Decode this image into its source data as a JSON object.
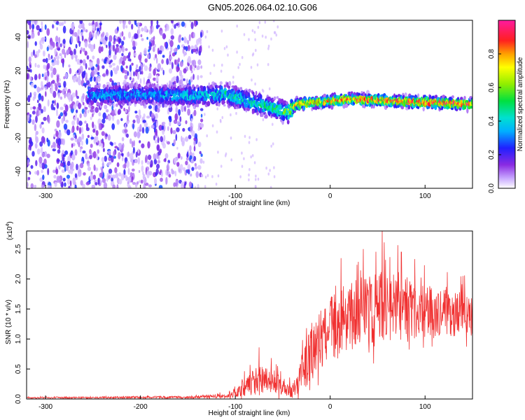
{
  "title": "GN05.2026.064.02.10.G06",
  "chart_data": [
    {
      "type": "heatmap",
      "name": "spectrogram",
      "xlabel": "Height of straight line (km)",
      "ylabel": "Frequency (Hz)",
      "xlim": [
        -320,
        150
      ],
      "ylim": [
        -50,
        50
      ],
      "x_ticks": [
        -300,
        -200,
        -100,
        0,
        100
      ],
      "y_ticks": [
        -40,
        -20,
        0,
        20,
        40
      ],
      "colorbar": {
        "label": "Normalized spectral amplitude",
        "range": [
          0.0,
          1.0
        ],
        "ticks": [
          0.0,
          0.2,
          0.4,
          0.6,
          0.8
        ]
      },
      "features": {
        "noise_region_x": [
          -320,
          -135
        ],
        "ridge": [
          {
            "x": -255,
            "f": 5,
            "amp": 0.35
          },
          {
            "x": -200,
            "f": 6,
            "amp": 0.35
          },
          {
            "x": -150,
            "f": 5,
            "amp": 0.4
          },
          {
            "x": -110,
            "f": 6,
            "amp": 0.45
          },
          {
            "x": -80,
            "f": 1,
            "amp": 0.45
          },
          {
            "x": -55,
            "f": -3,
            "amp": 0.5
          },
          {
            "x": -45,
            "f": -5,
            "amp": 0.6
          },
          {
            "x": -35,
            "f": 0,
            "amp": 0.8
          },
          {
            "x": 20,
            "f": 3,
            "amp": 0.85
          },
          {
            "x": 150,
            "f": 0,
            "amp": 0.95
          }
        ]
      }
    },
    {
      "type": "line",
      "name": "snr",
      "xlabel": "Height of straight line (km)",
      "ylabel": "SNR (10 * v/v)",
      "scale_label_base": "(x10",
      "scale_label_exp": "4",
      "scale_label_close": ")",
      "xlim": [
        -320,
        150
      ],
      "ylim": [
        0,
        2.8
      ],
      "x_ticks": [
        -300,
        -200,
        -100,
        0,
        100
      ],
      "y_ticks": [
        0.0,
        0.5,
        1.0,
        1.5,
        2.0,
        2.5
      ],
      "y_tick_labels": [
        "0.0",
        "0.5",
        "1.0",
        "1.5",
        "2.0",
        "2.5"
      ],
      "color": "#f03030",
      "envelope": [
        {
          "x": -320,
          "mean": 0.02,
          "amp": 0.01
        },
        {
          "x": -150,
          "mean": 0.03,
          "amp": 0.02
        },
        {
          "x": -110,
          "mean": 0.05,
          "amp": 0.04
        },
        {
          "x": -90,
          "mean": 0.2,
          "amp": 0.15
        },
        {
          "x": -75,
          "mean": 0.32,
          "amp": 0.25
        },
        {
          "x": -60,
          "mean": 0.3,
          "amp": 0.2
        },
        {
          "x": -40,
          "mean": 0.12,
          "amp": 0.1
        },
        {
          "x": -25,
          "mean": 0.6,
          "amp": 0.4
        },
        {
          "x": -10,
          "mean": 1.0,
          "amp": 0.5
        },
        {
          "x": 10,
          "mean": 1.3,
          "amp": 0.55
        },
        {
          "x": 40,
          "mean": 1.5,
          "amp": 0.6
        },
        {
          "x": 70,
          "mean": 1.55,
          "amp": 0.55
        },
        {
          "x": 100,
          "mean": 1.45,
          "amp": 0.45
        },
        {
          "x": 150,
          "mean": 1.4,
          "amp": 0.35
        }
      ],
      "peaks": [
        {
          "x": 55,
          "value": 2.82
        },
        {
          "x": 35,
          "value": 2.5
        },
        {
          "x": 75,
          "value": 2.45
        },
        {
          "x": 140,
          "value": 2.05
        },
        {
          "x": -75,
          "value": 0.86
        }
      ]
    }
  ]
}
